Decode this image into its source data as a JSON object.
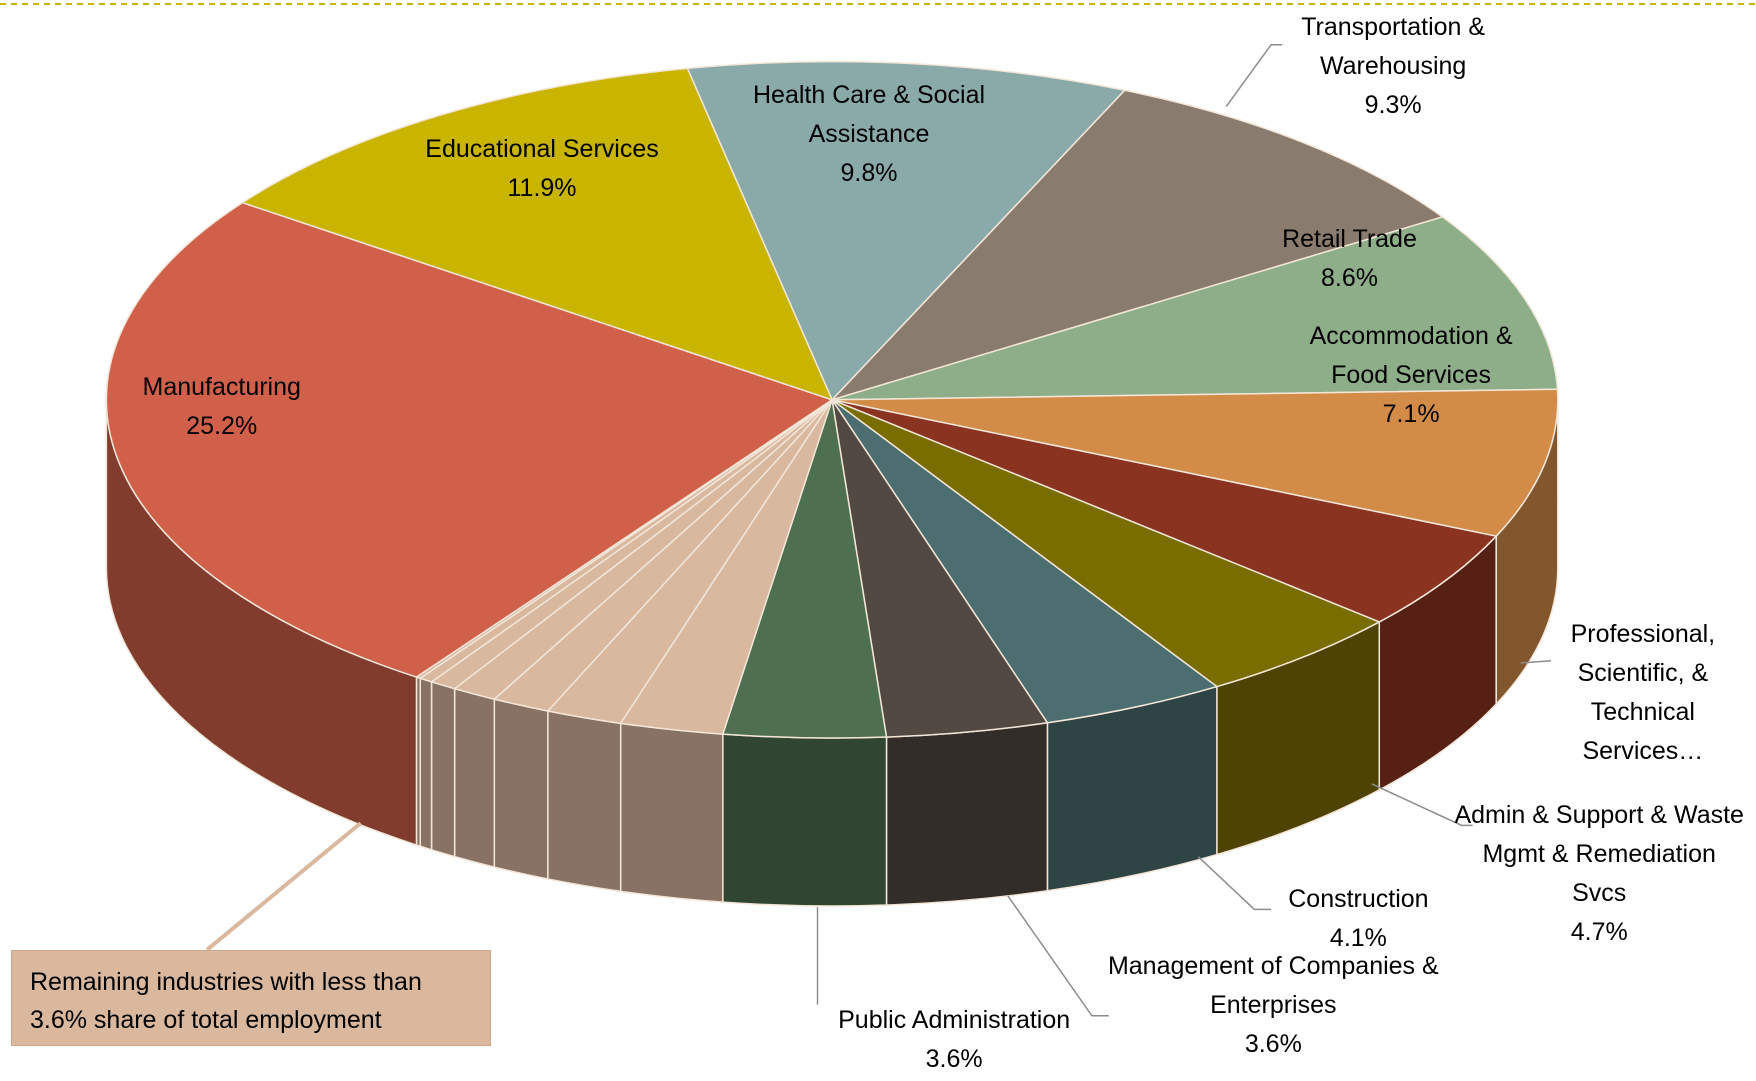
{
  "chart_data": {
    "type": "pie",
    "categories": [
      "Health Care & Social Assistance",
      "Transportation & Warehousing",
      "Retail Trade",
      "Accommodation & Food Services",
      "Professional, Scientific, & Technical Services…",
      "Admin & Support & Waste Mgmt & Remediation Svcs",
      "Construction",
      "Management of Companies & Enterprises",
      "Public Administration",
      null,
      null,
      null,
      null,
      null,
      null,
      null,
      "Manufacturing",
      "Educational Services"
    ],
    "values": [
      9.8,
      9.3,
      8.6,
      7.1,
      4.8,
      4.7,
      4.1,
      3.6,
      3.6,
      2.3,
      1.7,
      1.3,
      1.0,
      0.6,
      0.3,
      0.1,
      25.2,
      11.9
    ],
    "value_labels": [
      "9.8%",
      "9.3%",
      "8.6%",
      "7.1%",
      null,
      "4.7%",
      "4.1%",
      "3.6%",
      "3.6%",
      null,
      null,
      null,
      null,
      null,
      null,
      null,
      "25.2%",
      "11.9%"
    ],
    "colors": [
      "#8AAAAA",
      "#8A7B6F",
      "#8DAE88",
      "#D28C48",
      "#8A3320",
      "#7A6D00",
      "#4C6E70",
      "#524943",
      "#4E7050",
      "#D9B8A0",
      "#D9B8A0",
      "#D9B8A0",
      "#D9B8A0",
      "#D9B8A0",
      "#D9B8A0",
      "#D9B8A0",
      "#D0604A",
      "#C9B400"
    ],
    "annotation": "Remaining industries with less than 3.6% share of total employment"
  }
}
